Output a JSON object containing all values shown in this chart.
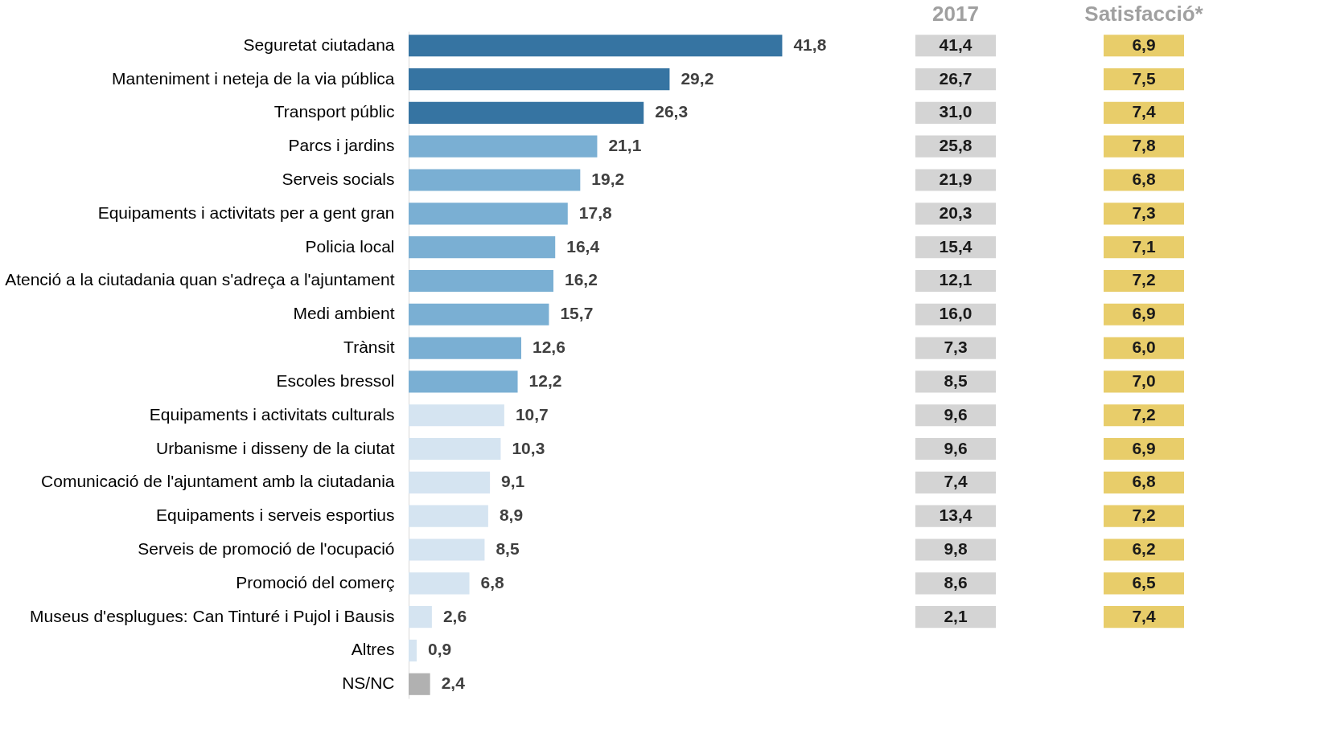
{
  "chart_data": [
    {
      "type": "bar",
      "orientation": "horizontal",
      "categories": [
        "Seguretat ciutadana",
        "Manteniment i neteja de la via pública",
        "Transport públic",
        "Parcs i jardins",
        "Serveis socials",
        "Equipaments i activitats per a gent gran",
        "Policia local",
        "Atenció a la ciutadania quan s'adreça a l'ajuntament",
        "Medi ambient",
        "Trànsit",
        "Escoles bressol",
        "Equipaments i activitats culturals",
        "Urbanisme i disseny de la ciutat",
        "Comunicació de l'ajuntament amb la ciutadania",
        "Equipaments i serveis esportius",
        "Serveis de promoció de l'ocupació",
        "Promoció del comerç",
        "Museus d'esplugues: Can Tinturé i Pujol i Bausis",
        "Altres",
        "NS/NC"
      ],
      "values": [
        41.8,
        29.2,
        26.3,
        21.1,
        19.2,
        17.8,
        16.4,
        16.2,
        15.7,
        12.6,
        12.2,
        10.7,
        10.3,
        9.1,
        8.9,
        8.5,
        6.8,
        2.6,
        0.9,
        2.4
      ],
      "value_labels": [
        "41,8",
        "29,2",
        "26,3",
        "21,1",
        "19,2",
        "17,8",
        "16,4",
        "16,2",
        "15,7",
        "12,6",
        "12,2",
        "10,7",
        "10,3",
        "9,1",
        "8,9",
        "8,5",
        "6,8",
        "2,6",
        "0,9",
        "2,4"
      ],
      "colors": [
        "#3674a2",
        "#3674a2",
        "#3674a2",
        "#7aafd3",
        "#7aafd3",
        "#7aafd3",
        "#7aafd3",
        "#7aafd3",
        "#7aafd3",
        "#7aafd3",
        "#7aafd3",
        "#d5e4f1",
        "#d5e4f1",
        "#d5e4f1",
        "#d5e4f1",
        "#d5e4f1",
        "#d5e4f1",
        "#d5e4f1",
        "#d5e4f1",
        "#b1b1b1"
      ],
      "tick_labels": "y"
    },
    {
      "type": "other",
      "title": "2017",
      "color": "#d4d4d4",
      "annotations": [
        "41,4",
        "26,7",
        "31,0",
        "25,8",
        "21,9",
        "20,3",
        "15,4",
        "12,1",
        "16,0",
        "7,3",
        "8,5",
        "9,6",
        "9,6",
        "7,4",
        "13,4",
        "9,8",
        "8,6",
        "2,1"
      ]
    },
    {
      "type": "other",
      "title": "Satisfacció*",
      "color": "#e8cd6a",
      "annotations": [
        "6,9",
        "7,5",
        "7,4",
        "7,8",
        "6,8",
        "7,3",
        "7,1",
        "7,2",
        "6,9",
        "6,0",
        "7,0",
        "7,2",
        "6,9",
        "6,8",
        "7,2",
        "6,2",
        "6,5",
        "7,4"
      ]
    }
  ]
}
